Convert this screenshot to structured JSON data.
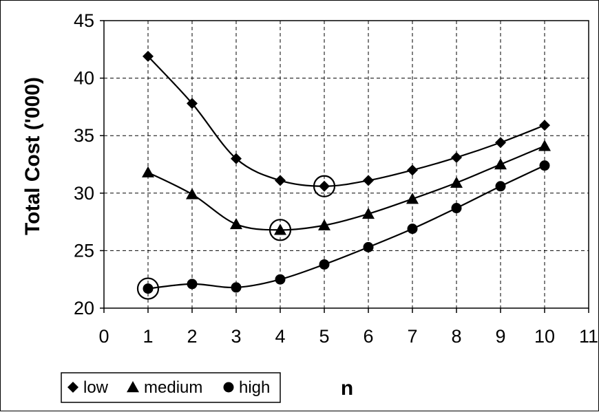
{
  "chart_data": {
    "type": "line",
    "title": "",
    "xlabel": "n",
    "ylabel": "Total Cost ('000)",
    "xlim": [
      0,
      11
    ],
    "ylim": [
      20,
      45
    ],
    "x_ticks": [
      "0",
      "1",
      "2",
      "3",
      "4",
      "5",
      "6",
      "7",
      "8",
      "9",
      "10",
      "11"
    ],
    "y_ticks": [
      "20",
      "25",
      "30",
      "35",
      "40",
      "45"
    ],
    "grid": true,
    "legend_position": "bottom-left",
    "x": [
      1,
      2,
      3,
      4,
      5,
      6,
      7,
      8,
      9,
      10
    ],
    "series": [
      {
        "name": "low",
        "marker": "diamond",
        "values": [
          41.9,
          37.8,
          33.0,
          31.1,
          30.6,
          31.1,
          32.0,
          33.1,
          34.4,
          35.9
        ]
      },
      {
        "name": "medium",
        "marker": "triangle",
        "values": [
          31.8,
          29.9,
          27.3,
          26.8,
          27.2,
          28.2,
          29.5,
          30.9,
          32.5,
          34.1
        ]
      },
      {
        "name": "high",
        "marker": "circle",
        "values": [
          21.7,
          22.1,
          21.8,
          22.5,
          23.8,
          25.3,
          26.9,
          28.7,
          30.6,
          32.4
        ]
      }
    ],
    "highlighted_points": [
      {
        "series": "low",
        "x": 5,
        "y": 30.6
      },
      {
        "series": "medium",
        "x": 4,
        "y": 26.8
      },
      {
        "series": "high",
        "x": 1,
        "y": 21.7
      }
    ]
  }
}
